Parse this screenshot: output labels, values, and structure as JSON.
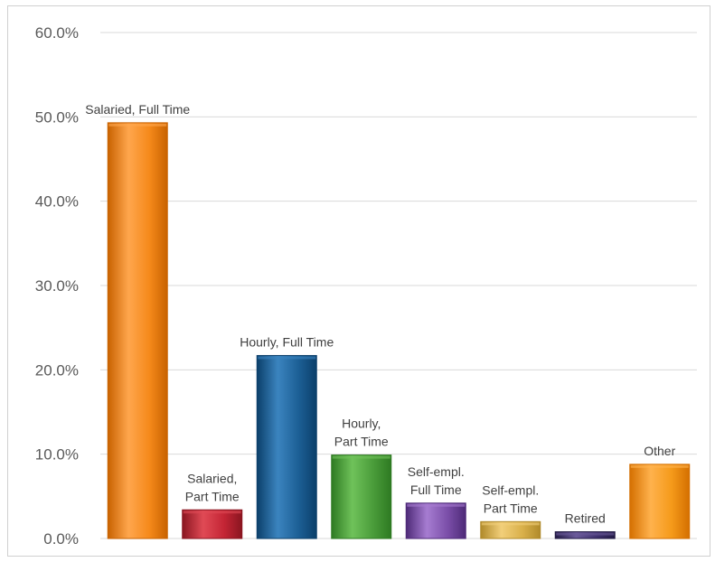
{
  "chart_data": {
    "type": "bar",
    "title": "",
    "xlabel": "",
    "ylabel": "",
    "ylim": [
      0,
      60
    ],
    "y_ticks": [
      {
        "value": 0,
        "label": "0.0%"
      },
      {
        "value": 10,
        "label": "10.0%"
      },
      {
        "value": 20,
        "label": "20.0%"
      },
      {
        "value": 30,
        "label": "30.0%"
      },
      {
        "value": 40,
        "label": "40.0%"
      },
      {
        "value": 50,
        "label": "50.0%"
      },
      {
        "value": 60,
        "label": "60.0%"
      }
    ],
    "grid": true,
    "legend": "none",
    "categories": [
      [
        "Salaried, Full Time"
      ],
      [
        "Salaried,",
        "Part Time"
      ],
      [
        "Hourly, Full Time"
      ],
      [
        "Hourly,",
        "Part Time"
      ],
      [
        "Self-empl.",
        "Full Time"
      ],
      [
        "Self-empl.",
        "Part Time"
      ],
      [
        "Retired"
      ],
      [
        "Other"
      ]
    ],
    "values": [
      49.3,
      3.4,
      21.7,
      9.9,
      4.2,
      2.0,
      0.8,
      8.8
    ],
    "colors": [
      {
        "light": "#ffa64d",
        "dark": "#c86200",
        "base": "#f5891a"
      },
      {
        "light": "#e04a55",
        "dark": "#8a1520",
        "base": "#c42535"
      },
      {
        "light": "#3b84bf",
        "dark": "#0b3f6a",
        "base": "#1c5f95"
      },
      {
        "light": "#6fc25a",
        "dark": "#2e7a22",
        "base": "#4a9c3a"
      },
      {
        "light": "#a67cd1",
        "dark": "#4e2a78",
        "base": "#7a4ea8"
      },
      {
        "light": "#f2cf7a",
        "dark": "#b08a2a",
        "base": "#d9b04a"
      },
      {
        "light": "#6a5a9a",
        "dark": "#221a44",
        "base": "#3f3170"
      },
      {
        "light": "#ffb24d",
        "dark": "#d46f00",
        "base": "#f59a1a"
      }
    ]
  }
}
